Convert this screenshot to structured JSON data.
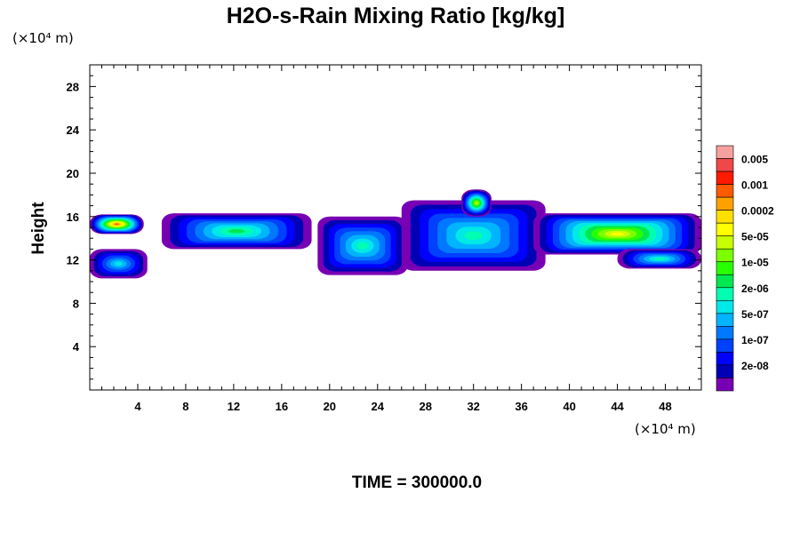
{
  "chart_data": {
    "type": "heatmap",
    "title": "H2O-s-Rain Mixing Ratio [kg/kg]",
    "xlabel": "",
    "ylabel": "Height",
    "x_unit": "(×10⁴ m)",
    "y_unit": "(×10⁴ m)",
    "xlim": [
      0,
      51
    ],
    "ylim": [
      0,
      30
    ],
    "x_ticks": [
      "4",
      "8",
      "12",
      "16",
      "20",
      "24",
      "28",
      "32",
      "36",
      "40",
      "44",
      "48"
    ],
    "y_ticks": [
      "4",
      "8",
      "12",
      "16",
      "20",
      "24",
      "28"
    ],
    "time_label": "TIME = 300000.0",
    "colorbar": {
      "labels": [
        "0.005",
        "0.001",
        "0.0002",
        "5e-05",
        "1e-05",
        "2e-06",
        "5e-07",
        "1e-07",
        "2e-08"
      ],
      "colors": [
        "#f7a0a0",
        "#f04848",
        "#ff1a00",
        "#ff5a00",
        "#ffa000",
        "#ffe000",
        "#ffff00",
        "#c8ff00",
        "#7cff00",
        "#28ff00",
        "#00e850",
        "#00ffb0",
        "#00e8e8",
        "#00b4ff",
        "#0078ff",
        "#0040ff",
        "#0000ff",
        "#0000b4",
        "#7800b4"
      ]
    },
    "bands": [
      {
        "x0": 0.0,
        "x1": 4.5,
        "y0": 14.4,
        "y1": 16.2,
        "level": 3
      },
      {
        "x0": 0.0,
        "x1": 4.8,
        "y0": 10.3,
        "y1": 13.0,
        "level": 12
      },
      {
        "x0": 6.0,
        "x1": 18.5,
        "y0": 13.0,
        "y1": 16.3,
        "level": 10
      },
      {
        "x0": 19.0,
        "x1": 26.5,
        "y0": 10.6,
        "y1": 16.0,
        "level": 11
      },
      {
        "x0": 26.0,
        "x1": 38.0,
        "y0": 11.0,
        "y1": 17.5,
        "level": 11
      },
      {
        "x0": 31.0,
        "x1": 33.5,
        "y0": 16.0,
        "y1": 18.5,
        "level": 7
      },
      {
        "x0": 37.0,
        "x1": 51.0,
        "y0": 12.5,
        "y1": 16.3,
        "level": 6
      },
      {
        "x0": 44.0,
        "x1": 51.0,
        "y0": 11.2,
        "y1": 13.0,
        "level": 11
      }
    ]
  }
}
